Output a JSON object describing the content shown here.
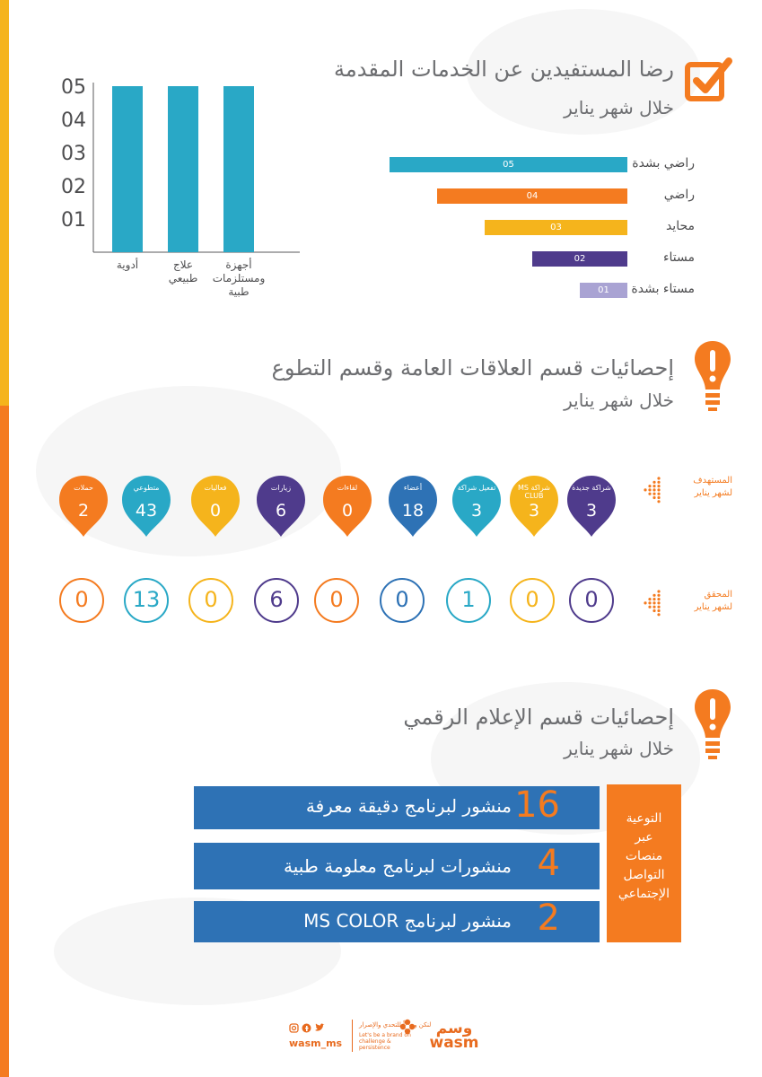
{
  "colors": {
    "orange": "#f47b20",
    "yellow": "#f5b41c",
    "teal": "#29a8c6",
    "purple": "#4f3b8c",
    "lavender": "#a9a3d3",
    "blue": "#2e72b5",
    "gray": "#6d6e71"
  },
  "section1": {
    "title": "رضا المستفيدين عن الخدمات المقدمة",
    "subtitle": "خلال شهر يناير",
    "icon": "checkbox-check-icon"
  },
  "section2": {
    "title": "إحصائيات قسم العلاقات العامة وقسم التطوع",
    "subtitle": "خلال شهر يناير",
    "icon": "exclamation-bulb-icon"
  },
  "section3": {
    "title": "إحصائيات قسم الإعلام الرقمي",
    "subtitle": "خلال شهر يناير",
    "icon": "exclamation-bulb-icon"
  },
  "chart_data": [
    {
      "type": "bar",
      "orientation": "vertical",
      "categories": [
        "أدوية",
        "علاج طبيعي",
        "أجهزة ومستلزمات طبية"
      ],
      "values": [
        5,
        5,
        5
      ],
      "ytick_labels": [
        "01",
        "02",
        "03",
        "04",
        "05"
      ],
      "ylim": [
        0,
        5
      ],
      "color": "#29a8c6"
    },
    {
      "type": "bar",
      "orientation": "horizontal",
      "categories": [
        "راضي بشدة",
        "راضي",
        "محايد",
        "مستاء",
        "مستاء بشدة"
      ],
      "values": [
        5,
        4,
        3,
        2,
        1
      ],
      "value_labels": [
        "05",
        "04",
        "03",
        "02",
        "01"
      ],
      "colors": [
        "#29a8c6",
        "#f47b20",
        "#f5b41c",
        "#4f3b8c",
        "#a9a3d3"
      ],
      "xlim": [
        0,
        5
      ]
    }
  ],
  "targets": {
    "row_label_line1": "المستهدف",
    "row_label_line2": "لشهر يناير",
    "row_icon": "arrow-dots-icon",
    "items": [
      {
        "label": "شراكة جديدة",
        "value": "3",
        "color": "#4f3b8c"
      },
      {
        "label": "شراكة MS CLUB",
        "value": "3",
        "color": "#f5b41c"
      },
      {
        "label": "تفعيل شراكة",
        "value": "3",
        "color": "#29a8c6"
      },
      {
        "label": "أعضاء",
        "value": "18",
        "color": "#2e72b5"
      },
      {
        "label": "لقاءات",
        "value": "0",
        "color": "#f47b20"
      },
      {
        "label": "زيارات",
        "value": "6",
        "color": "#4f3b8c"
      },
      {
        "label": "فعاليات",
        "value": "0",
        "color": "#f5b41c"
      },
      {
        "label": "متطوعي",
        "value": "43",
        "color": "#29a8c6"
      },
      {
        "label": "حملات",
        "value": "2",
        "color": "#f47b20"
      }
    ]
  },
  "achieved": {
    "row_label_line1": "المحقق",
    "row_label_line2": "لشهر يناير",
    "row_icon": "arrow-dots-icon",
    "items": [
      {
        "value": "0",
        "color": "#4f3b8c"
      },
      {
        "value": "0",
        "color": "#f5b41c"
      },
      {
        "value": "1",
        "color": "#29a8c6"
      },
      {
        "value": "0",
        "color": "#2e72b5"
      },
      {
        "value": "0",
        "color": "#f47b20"
      },
      {
        "value": "6",
        "color": "#4f3b8c"
      },
      {
        "value": "0",
        "color": "#f5b41c"
      },
      {
        "value": "13",
        "color": "#29a8c6"
      },
      {
        "value": "0",
        "color": "#f47b20"
      }
    ]
  },
  "digital": {
    "side_label": [
      "التوعية",
      "عبر",
      "منصات",
      "التواصل",
      "الإجتماعي"
    ],
    "items": [
      {
        "number": "16",
        "text": "منشور لبرنامج دقيقة معرفة"
      },
      {
        "number": "4",
        "text": "منشورات لبرنامج معلومة طبية"
      },
      {
        "number": "2",
        "text": "منشور لبرنامج MS COLOR"
      }
    ]
  },
  "footer": {
    "handle": "wasm_ms",
    "social_icons": [
      "instagram-icon",
      "facebook-icon",
      "twitter-icon"
    ],
    "tagline_ar": "لنكن وسماً للتحدي والإصرار",
    "tagline_en": "Let's be a brand on challenge & persistence",
    "logo_text": "وسم wasm"
  }
}
